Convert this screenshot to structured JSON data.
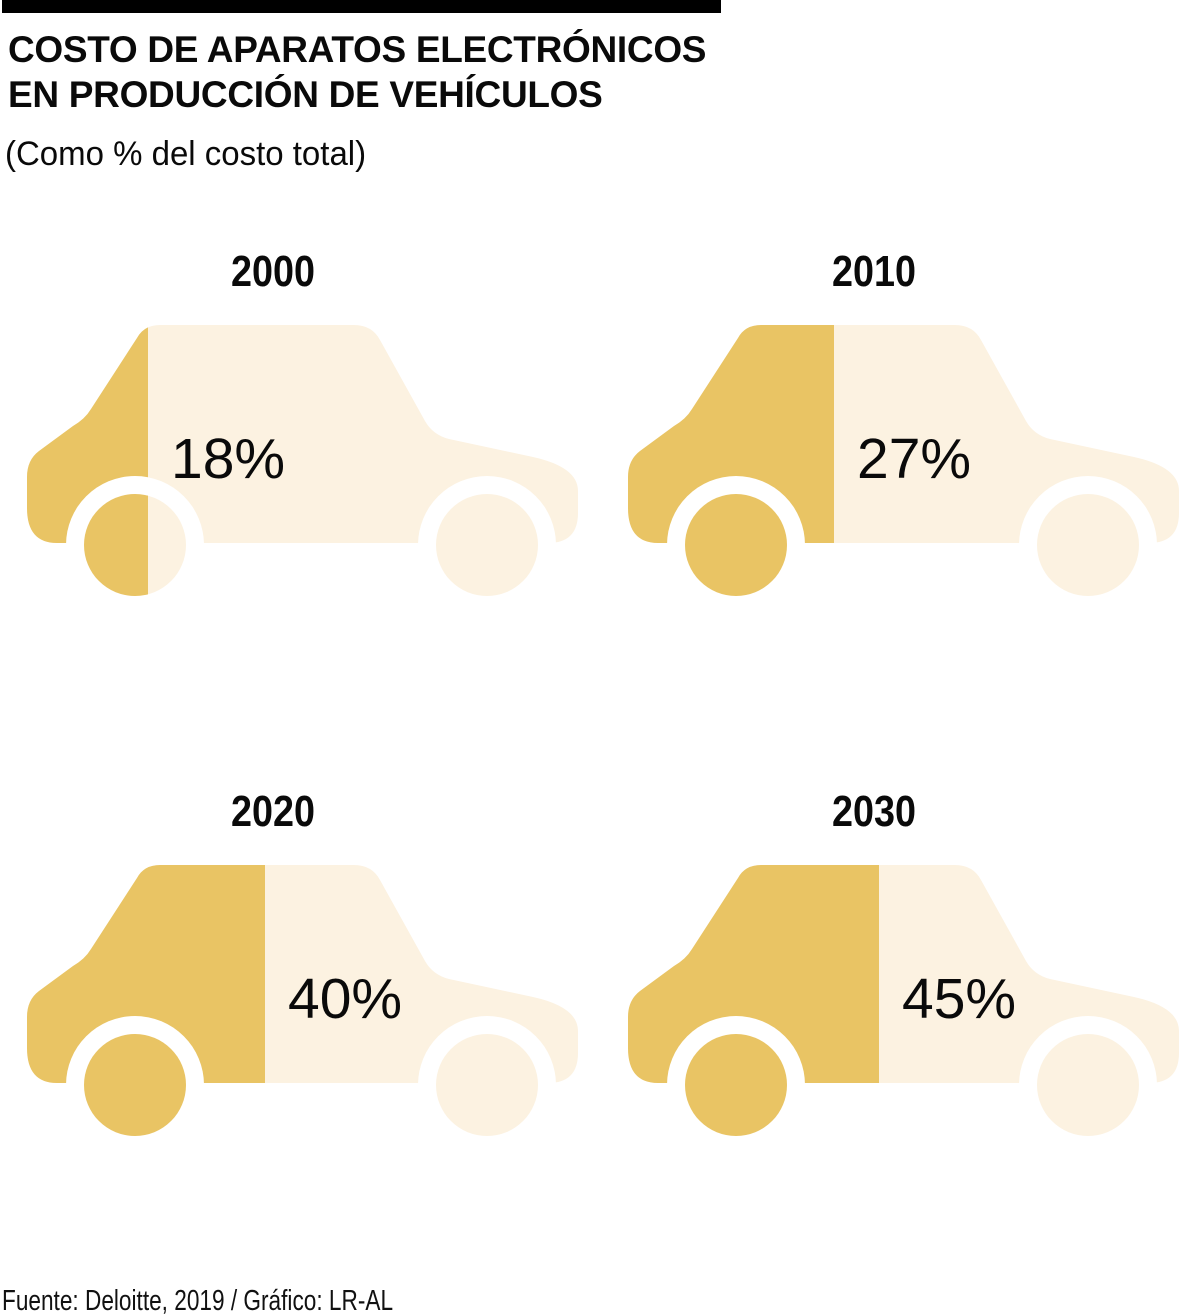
{
  "header": {
    "title_line1": "COSTO DE APARATOS ELECTRÓNICOS",
    "title_line2": "EN PRODUCCIÓN DE VEHÍCULOS",
    "subtitle": "(Como % del costo total)"
  },
  "footer": {
    "source": "Fuente: Deloitte, 2019 / Gráfico: LR-AL"
  },
  "colors": {
    "filled_gold": "#E9C464",
    "unfilled_cream": "#FCF2E1",
    "bar_black": "#000000",
    "text_black": "#0A0A0A",
    "background": "#FFFFFF"
  },
  "chart_data": {
    "type": "bar",
    "variant": "pictogram-car-fill",
    "title": "Costo de aparatos electrónicos en producción de vehículos",
    "subtitle": "(Como % del costo total)",
    "unit": "% del costo total",
    "categories": [
      "2000",
      "2010",
      "2020",
      "2030"
    ],
    "values": [
      18,
      27,
      40,
      45
    ],
    "value_labels": [
      "18%",
      "27%",
      "40%",
      "45%"
    ],
    "icon": "car-side-silhouette",
    "legend_position": "none",
    "grid": false,
    "fill_fractions": [
      0.221,
      0.376,
      0.434,
      0.457
    ],
    "source": "Fuente: Deloitte, 2019 / Gráfico: LR-AL"
  },
  "cars": [
    {
      "year": "2000",
      "label": "18%"
    },
    {
      "year": "2010",
      "label": "27%"
    },
    {
      "year": "2020",
      "label": "40%"
    },
    {
      "year": "2030",
      "label": "45%"
    }
  ]
}
